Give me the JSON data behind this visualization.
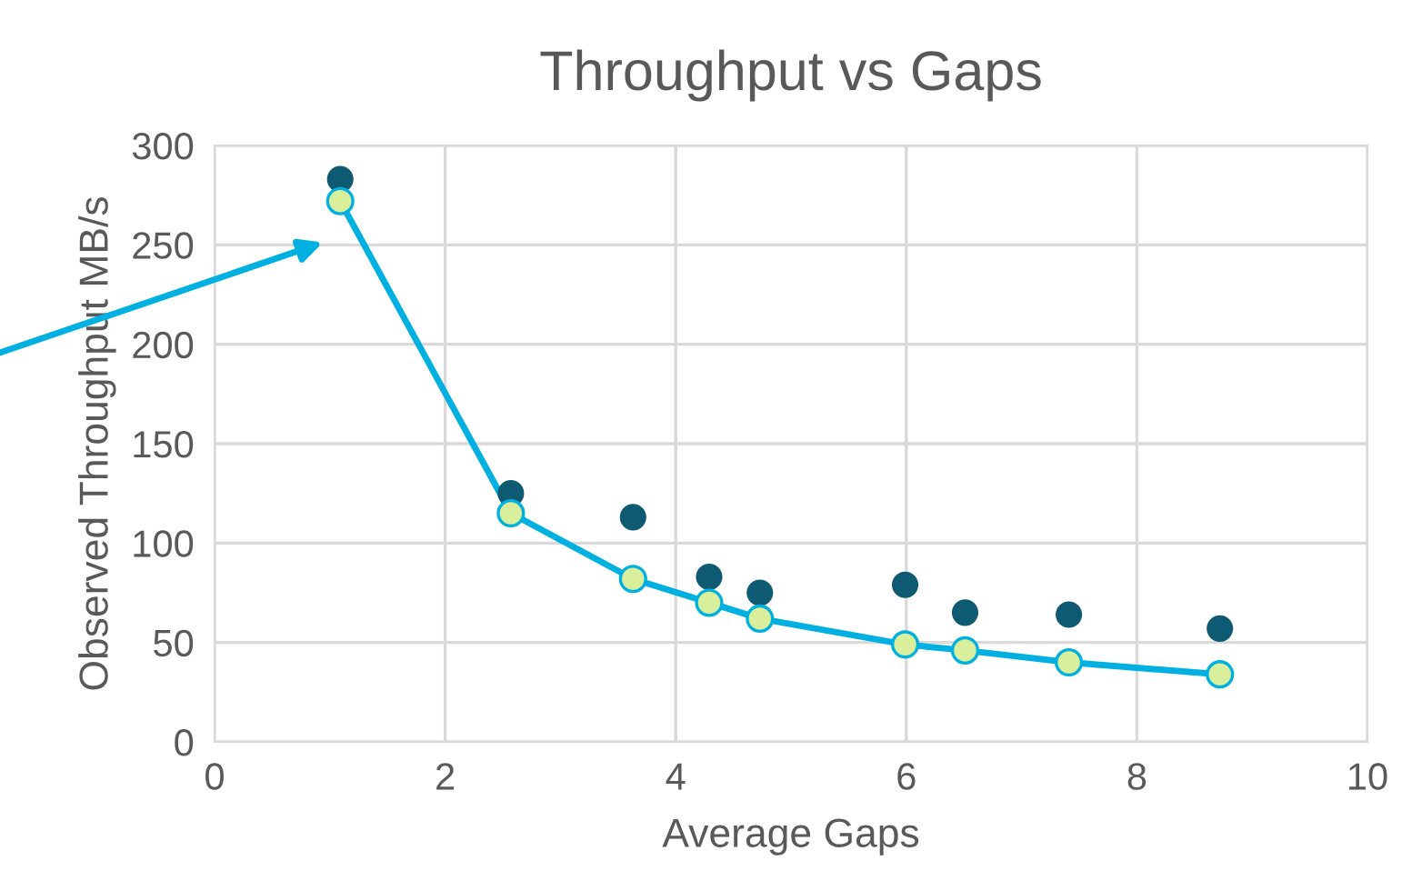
{
  "chart_data": {
    "type": "scatter",
    "title": "Throughput vs Gaps",
    "xlabel": "Average Gaps",
    "ylabel": "Observed Throughput MB/s",
    "xlim": [
      0,
      10
    ],
    "xticks": [
      0,
      2,
      4,
      6,
      8,
      10
    ],
    "ylim": [
      0,
      300
    ],
    "yticks": [
      0,
      50,
      100,
      150,
      200,
      250,
      300
    ],
    "grid": true,
    "marker": "circle",
    "series": [
      {
        "color": "#0e5a73",
        "x": [
          1.09,
          2.57,
          3.63,
          4.29,
          4.73,
          5.99,
          6.51,
          7.41,
          8.72
        ],
        "values": [
          283,
          125,
          113,
          83,
          75,
          79,
          65,
          64,
          57
        ]
      },
      {
        "type": "line",
        "color": "#00b0e0",
        "x": [
          1.09,
          2.57,
          3.63,
          4.29,
          4.73,
          5.99,
          6.51,
          7.41,
          8.72
        ],
        "values": [
          272,
          115,
          82,
          70,
          62,
          49,
          46,
          40,
          34
        ]
      }
    ]
  }
}
